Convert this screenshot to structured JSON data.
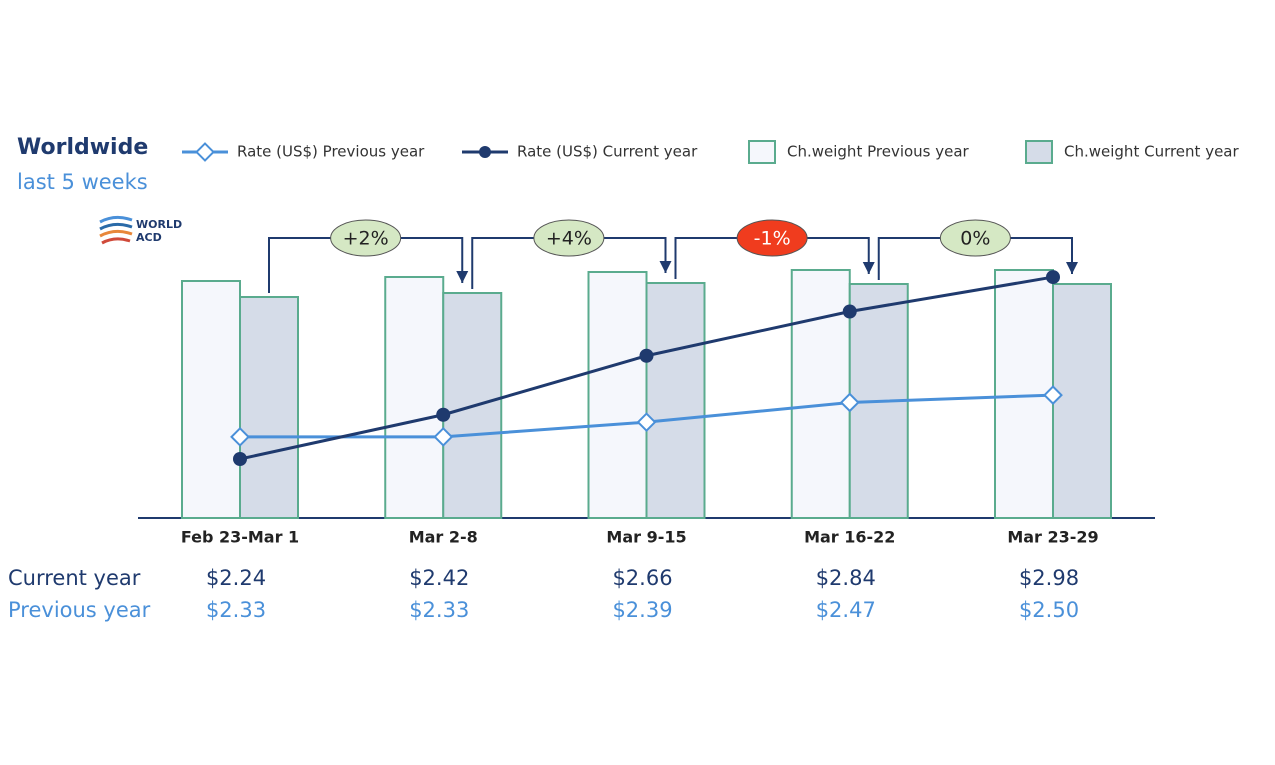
{
  "chart_data": {
    "type": "bar",
    "title": "Worldwide",
    "subtitle": "last 5 weeks",
    "logo": [
      "WORLD",
      "ACD"
    ],
    "categories": [
      "Feb 23-Mar 1",
      "Mar 2-8",
      "Mar 9-15",
      "Mar 16-22",
      "Mar 23-29"
    ],
    "ylim": [
      0,
      250
    ],
    "y2lim": [
      2.0,
      3.2
    ],
    "series": [
      {
        "name": "Rate (US$) Previous year",
        "type": "line",
        "axis": "y2",
        "color": "#4a90d9",
        "row_label": "Previous year",
        "values": [
          2.33,
          2.33,
          2.39,
          2.47,
          2.5
        ],
        "value_labels": [
          "$2.33",
          "$2.33",
          "$2.39",
          "$2.47",
          "$2.50"
        ]
      },
      {
        "name": "Rate (US$) Current year",
        "type": "line",
        "axis": "y2",
        "color": "#1f3a6e",
        "row_label": "Current year",
        "values": [
          2.24,
          2.42,
          2.66,
          2.84,
          2.98
        ],
        "value_labels": [
          "$2.24",
          "$2.42",
          "$2.66",
          "$2.84",
          "$2.98"
        ]
      },
      {
        "name": "Ch.weight Previous year",
        "type": "bar",
        "color": "#f5f7fc",
        "stroke": "#5aab8e",
        "values": [
          237,
          241,
          246,
          248,
          248
        ]
      },
      {
        "name": "Ch.weight Current year",
        "type": "bar",
        "color": "#d5dce8",
        "stroke": "#5aab8e",
        "values": [
          221,
          225,
          235,
          234,
          234
        ]
      }
    ],
    "changes": {
      "values": [
        2,
        4,
        -1,
        0
      ],
      "value_labels": [
        "+2%",
        "+4%",
        "-1%",
        "0%"
      ],
      "positive_color": "#d5e8c4",
      "negative_color": "#f03c1e",
      "line_color": "#1f3a6e"
    }
  }
}
